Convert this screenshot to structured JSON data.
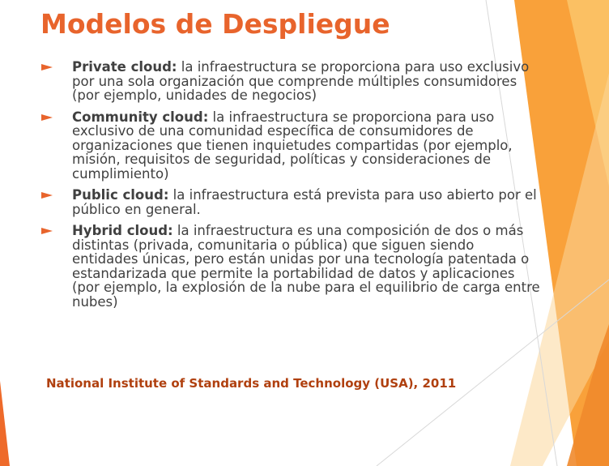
{
  "slide": {
    "title": "Modelos de Despliegue",
    "bullets": [
      {
        "term": "Private cloud:",
        "text": " la infraestructura se proporciona para uso exclusivo por una sola organización que comprende múltiples consumidores (por ejemplo, unidades de negocios)"
      },
      {
        "term": "Community cloud:",
        "text": " la infraestructura se proporciona para uso exclusivo de una comunidad específica de consumidores de organizaciones que tienen inquietudes compartidas (por ejemplo, misión, requisitos de seguridad, políticas y consideraciones de cumplimiento)"
      },
      {
        "term": "Public cloud:",
        "text": " la infraestructura está prevista para uso abierto por el público en general."
      },
      {
        "term": "Hybrid cloud:",
        "text": " la infraestructura es una composición de dos o más distintas (privada, comunitaria o pública) que siguen siendo entidades únicas, pero están unidas por una tecnología patentada o estandarizada que permite la portabilidad de datos y aplicaciones (por ejemplo, la explosión de la nube para el equilibrio de carga entre nubes)"
      }
    ],
    "source": "National Institute of Standards and Technology (USA), 2011"
  },
  "theme": {
    "title_color": "#e8642c",
    "bullet_color": "#e8642c",
    "source_color": "#b0400f",
    "text_color": "#404040",
    "decoration_colors": [
      "#f9a13a",
      "#fbc56b",
      "#ee6a2a"
    ]
  }
}
